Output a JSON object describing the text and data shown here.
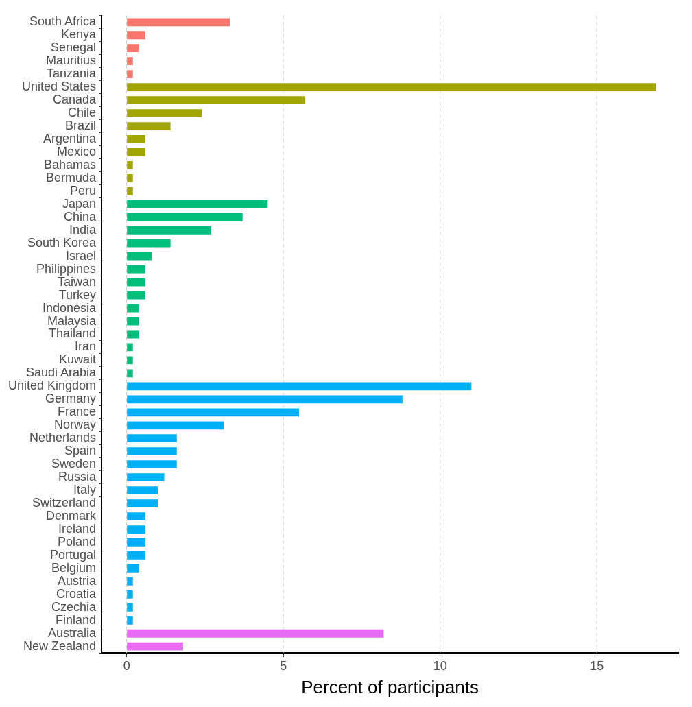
{
  "chart_data": {
    "type": "bar",
    "orientation": "horizontal",
    "xlabel": "Percent of participants",
    "categories": [
      "South Africa",
      "Kenya",
      "Senegal",
      "Mauritius",
      "Tanzania",
      "United States",
      "Canada",
      "Chile",
      "Brazil",
      "Argentina",
      "Mexico",
      "Bahamas",
      "Bermuda",
      "Peru",
      "Japan",
      "China",
      "India",
      "South Korea",
      "Israel",
      "Philippines",
      "Taiwan",
      "Turkey",
      "Indonesia",
      "Malaysia",
      "Thailand",
      "Iran",
      "Kuwait",
      "Saudi Arabia",
      "United Kingdom",
      "Germany",
      "France",
      "Norway",
      "Netherlands",
      "Spain",
      "Sweden",
      "Russia",
      "Italy",
      "Switzerland",
      "Denmark",
      "Ireland",
      "Poland",
      "Portugal",
      "Belgium",
      "Austria",
      "Croatia",
      "Czechia",
      "Finland",
      "Australia",
      "New Zealand"
    ],
    "values": [
      3.3,
      0.6,
      0.4,
      0.2,
      0.2,
      16.9,
      5.7,
      2.4,
      1.4,
      0.6,
      0.6,
      0.2,
      0.2,
      0.2,
      4.5,
      3.7,
      2.7,
      1.4,
      0.8,
      0.6,
      0.6,
      0.6,
      0.4,
      0.4,
      0.4,
      0.2,
      0.2,
      0.2,
      11.0,
      8.8,
      5.5,
      3.1,
      1.6,
      1.6,
      1.6,
      1.2,
      1.0,
      1.0,
      0.6,
      0.6,
      0.6,
      0.6,
      0.4,
      0.2,
      0.2,
      0.2,
      0.2,
      8.2,
      1.8
    ],
    "colors": [
      "#f8766d",
      "#f8766d",
      "#f8766d",
      "#f8766d",
      "#f8766d",
      "#a3a500",
      "#a3a500",
      "#a3a500",
      "#a3a500",
      "#a3a500",
      "#a3a500",
      "#a3a500",
      "#a3a500",
      "#a3a500",
      "#00bf7d",
      "#00bf7d",
      "#00bf7d",
      "#00bf7d",
      "#00bf7d",
      "#00bf7d",
      "#00bf7d",
      "#00bf7d",
      "#00bf7d",
      "#00bf7d",
      "#00bf7d",
      "#00bf7d",
      "#00bf7d",
      "#00bf7d",
      "#00b0f6",
      "#00b0f6",
      "#00b0f6",
      "#00b0f6",
      "#00b0f6",
      "#00b0f6",
      "#00b0f6",
      "#00b0f6",
      "#00b0f6",
      "#00b0f6",
      "#00b0f6",
      "#00b0f6",
      "#00b0f6",
      "#00b0f6",
      "#00b0f6",
      "#00b0f6",
      "#00b0f6",
      "#00b0f6",
      "#00b0f6",
      "#e76bf3",
      "#e76bf3"
    ],
    "xlim": [
      -0.8,
      17.6
    ],
    "xticks": [
      0,
      5,
      10,
      15
    ],
    "grid": "x",
    "legend": false
  }
}
